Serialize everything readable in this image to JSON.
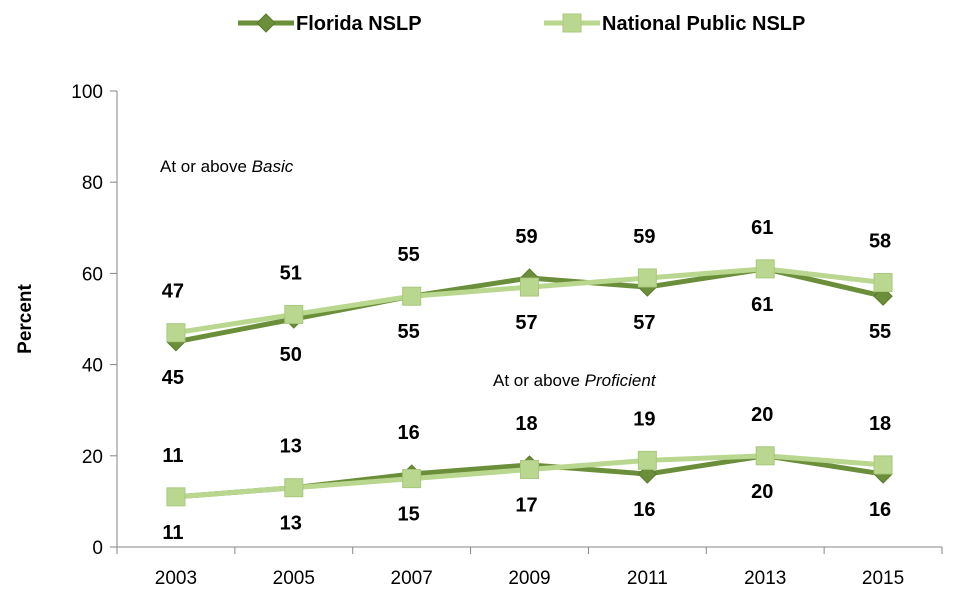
{
  "chart_data": {
    "type": "line",
    "categories": [
      "2003",
      "2005",
      "2007",
      "2009",
      "2011",
      "2013",
      "2015"
    ],
    "ylabel": "Percent",
    "ylim": [
      0,
      100
    ],
    "yticks": [
      0,
      20,
      40,
      60,
      80,
      100
    ],
    "legend_position": "top",
    "series": [
      {
        "name": "Florida NSLP",
        "color": "#6b8e3a",
        "marker": "diamond",
        "groups": {
          "basic": [
            45,
            50,
            55,
            59,
            57,
            61,
            55
          ],
          "proficient": [
            11,
            13,
            16,
            18,
            16,
            20,
            16
          ]
        }
      },
      {
        "name": "National Public NSLP",
        "color": "#b9d78e",
        "marker": "square",
        "groups": {
          "basic": [
            47,
            51,
            55,
            57,
            59,
            61,
            58
          ],
          "proficient": [
            11,
            13,
            15,
            17,
            19,
            20,
            18
          ]
        }
      }
    ],
    "annotations": [
      {
        "group": "basic",
        "prefix": "At or above ",
        "emphasis": "Basic"
      },
      {
        "group": "proficient",
        "prefix": "At or above ",
        "emphasis": "Proficient"
      }
    ]
  }
}
